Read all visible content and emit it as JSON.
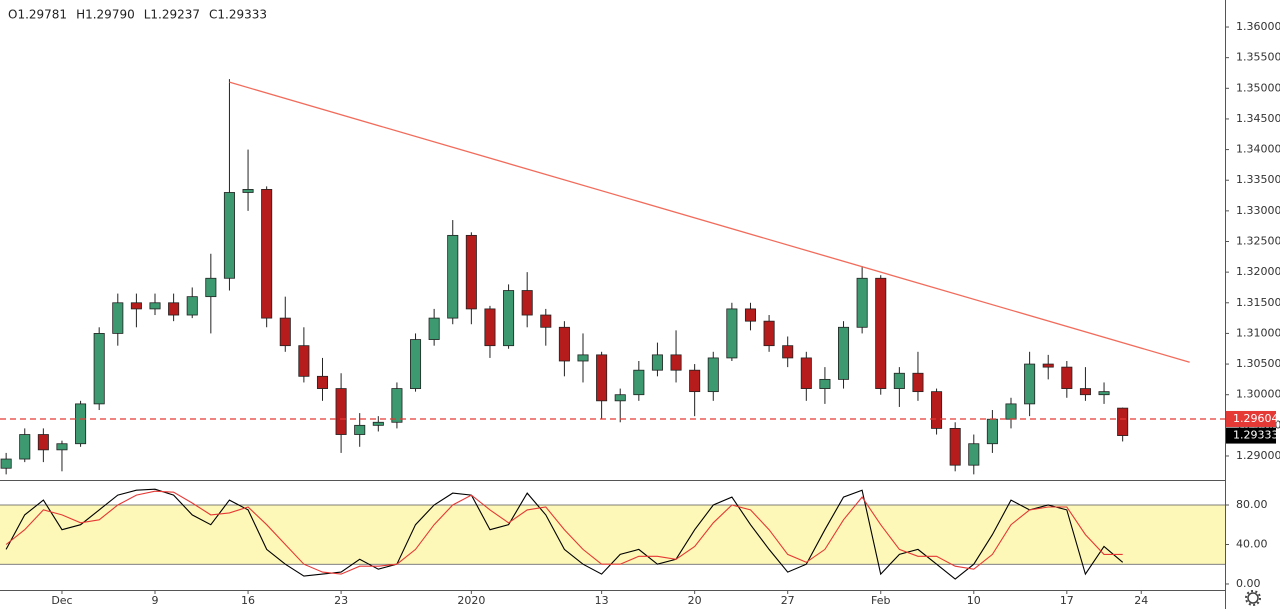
{
  "chart_data": [
    {
      "type": "candlestick",
      "ohlc_label": [
        "O1.29781",
        "H1.29790",
        "L1.29237",
        "C1.29333"
      ],
      "open": [
        1.288,
        1.2895,
        1.2935,
        1.291,
        1.292,
        1.2985,
        1.31,
        1.315,
        1.314,
        1.315,
        1.313,
        1.316,
        1.319,
        1.333,
        1.3335,
        1.3125,
        1.308,
        1.303,
        1.301,
        1.2935,
        1.295,
        1.2955,
        1.301,
        1.309,
        1.3125,
        1.326,
        1.314,
        1.308,
        1.317,
        1.313,
        1.311,
        1.3055,
        1.3065,
        1.299,
        1.3,
        1.304,
        1.3065,
        1.304,
        1.3005,
        1.306,
        1.314,
        1.312,
        1.308,
        1.306,
        1.301,
        1.3025,
        1.311,
        1.319,
        1.301,
        1.3035,
        1.3005,
        1.2945,
        1.2885,
        1.292,
        1.296,
        1.2985,
        1.305,
        1.3045,
        1.301,
        1.3,
        1.29781
      ],
      "high": [
        1.2905,
        1.2945,
        1.2945,
        1.2925,
        1.299,
        1.311,
        1.3165,
        1.3165,
        1.3165,
        1.3165,
        1.3175,
        1.323,
        1.3515,
        1.34,
        1.334,
        1.316,
        1.311,
        1.306,
        1.3035,
        1.297,
        1.2965,
        1.302,
        1.31,
        1.314,
        1.3285,
        1.3265,
        1.3145,
        1.318,
        1.32,
        1.314,
        1.312,
        1.31,
        1.307,
        1.301,
        1.3055,
        1.3085,
        1.3105,
        1.305,
        1.307,
        1.315,
        1.315,
        1.313,
        1.3095,
        1.307,
        1.3045,
        1.312,
        1.321,
        1.3195,
        1.3045,
        1.307,
        1.301,
        1.2955,
        1.2935,
        1.2975,
        1.2995,
        1.307,
        1.3065,
        1.3055,
        1.3045,
        1.302,
        1.2979
      ],
      "low": [
        1.287,
        1.289,
        1.289,
        1.2875,
        1.2915,
        1.2975,
        1.308,
        1.311,
        1.313,
        1.312,
        1.3125,
        1.31,
        1.317,
        1.33,
        1.311,
        1.307,
        1.302,
        1.299,
        1.2905,
        1.2915,
        1.294,
        1.2945,
        1.3005,
        1.308,
        1.3115,
        1.3115,
        1.306,
        1.3075,
        1.311,
        1.308,
        1.303,
        1.302,
        1.296,
        1.2955,
        1.299,
        1.303,
        1.302,
        1.2965,
        1.299,
        1.3055,
        1.3105,
        1.307,
        1.3045,
        1.299,
        1.2985,
        1.301,
        1.31,
        1.3,
        1.298,
        1.299,
        1.2935,
        1.2875,
        1.287,
        1.2905,
        1.2945,
        1.2965,
        1.3025,
        1.2995,
        1.299,
        1.2985,
        1.29237
      ],
      "close": [
        1.2895,
        1.2935,
        1.291,
        1.292,
        1.2985,
        1.31,
        1.315,
        1.314,
        1.315,
        1.313,
        1.316,
        1.319,
        1.333,
        1.3335,
        1.3125,
        1.308,
        1.303,
        1.301,
        1.2935,
        1.295,
        1.2955,
        1.301,
        1.309,
        1.3125,
        1.326,
        1.314,
        1.308,
        1.317,
        1.313,
        1.311,
        1.3055,
        1.3065,
        1.299,
        1.3,
        1.304,
        1.3065,
        1.304,
        1.3005,
        1.306,
        1.314,
        1.312,
        1.308,
        1.306,
        1.301,
        1.3025,
        1.311,
        1.319,
        1.301,
        1.3035,
        1.3005,
        1.2945,
        1.2885,
        1.292,
        1.296,
        1.2985,
        1.305,
        1.3045,
        1.301,
        1.3,
        1.3005,
        1.29333
      ],
      "up_color": "#3d9970",
      "down_color": "#b71c1c",
      "xlim": [
        -0.33,
        65.5
      ],
      "ylim": [
        1.28608,
        1.36441
      ],
      "yticks": [
        {
          "value": 1.29,
          "label": "1.29000"
        },
        {
          "value": 1.295,
          "label": "1.29500"
        },
        {
          "value": 1.3,
          "label": "1.30000"
        },
        {
          "value": 1.305,
          "label": "1.30500"
        },
        {
          "value": 1.31,
          "label": "1.31000"
        },
        {
          "value": 1.315,
          "label": "1.31500"
        },
        {
          "value": 1.32,
          "label": "1.32000"
        },
        {
          "value": 1.325,
          "label": "1.32500"
        },
        {
          "value": 1.33,
          "label": "1.33000"
        },
        {
          "value": 1.335,
          "label": "1.33500"
        },
        {
          "value": 1.34,
          "label": "1.34000"
        },
        {
          "value": 1.345,
          "label": "1.34500"
        },
        {
          "value": 1.35,
          "label": "1.35000"
        },
        {
          "value": 1.355,
          "label": "1.35500"
        },
        {
          "value": 1.36,
          "label": "1.36000"
        }
      ],
      "trendline": {
        "color": "#f26b5b",
        "x": [
          12,
          63.6
        ],
        "y": [
          1.351,
          1.3053
        ]
      },
      "price_line": {
        "value": 1.29604,
        "label": "1.29604",
        "color": "#e53935"
      },
      "last_price": {
        "value": 1.29333,
        "label": "1.29333",
        "color": "#000000"
      }
    },
    {
      "type": "line",
      "series": [
        {
          "color": "#000000",
          "values": [
            35,
            70,
            85,
            55,
            60,
            75,
            90,
            95,
            96,
            90,
            70,
            60,
            85,
            75,
            35,
            20,
            8,
            10,
            12,
            25,
            15,
            20,
            60,
            80,
            92,
            90,
            55,
            60,
            92,
            70,
            35,
            20,
            10,
            30,
            35,
            20,
            25,
            55,
            80,
            88,
            60,
            35,
            12,
            20,
            55,
            88,
            95,
            10,
            30,
            35,
            20,
            5,
            20,
            50,
            85,
            75,
            80,
            75,
            10,
            38,
            22
          ]
        },
        {
          "color": "#e53935",
          "values": [
            40,
            55,
            75,
            70,
            62,
            65,
            80,
            90,
            94,
            93,
            82,
            70,
            72,
            78,
            60,
            40,
            20,
            12,
            10,
            18,
            18,
            20,
            35,
            60,
            80,
            90,
            75,
            62,
            75,
            78,
            55,
            35,
            20,
            20,
            28,
            28,
            25,
            38,
            62,
            80,
            75,
            55,
            30,
            22,
            35,
            65,
            88,
            60,
            35,
            28,
            28,
            18,
            15,
            30,
            60,
            75,
            78,
            78,
            50,
            30,
            30
          ]
        }
      ],
      "band": [
        20,
        80
      ],
      "band_color": "#fdf8b8",
      "xlim": [
        -0.33,
        65.5
      ],
      "ylim": [
        -6.1,
        104.3
      ],
      "yticks": [
        {
          "value": 0,
          "label": "0.00"
        },
        {
          "value": 40,
          "label": "40.00"
        },
        {
          "value": 80,
          "label": "80.00"
        }
      ],
      "xticks": [
        {
          "value": 3,
          "label": "Dec"
        },
        {
          "value": 8,
          "label": "9"
        },
        {
          "value": 13,
          "label": "16"
        },
        {
          "value": 18,
          "label": "23"
        },
        {
          "value": 25,
          "label": "2020"
        },
        {
          "value": 32,
          "label": "13"
        },
        {
          "value": 37,
          "label": "20"
        },
        {
          "value": 42,
          "label": "27"
        },
        {
          "value": 47,
          "label": "Feb"
        },
        {
          "value": 52,
          "label": "10"
        },
        {
          "value": 57,
          "label": "17"
        },
        {
          "value": 61,
          "label": "24"
        }
      ]
    }
  ]
}
